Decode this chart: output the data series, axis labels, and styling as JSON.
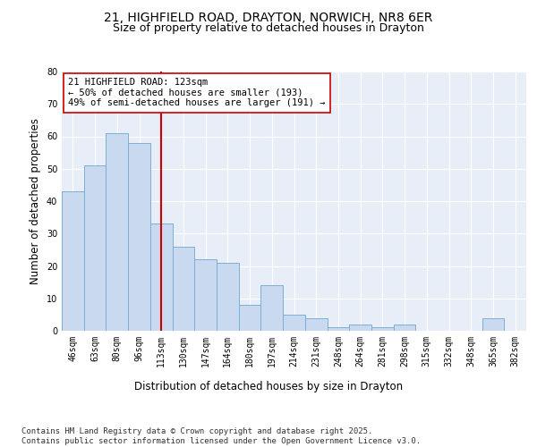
{
  "title_line1": "21, HIGHFIELD ROAD, DRAYTON, NORWICH, NR8 6ER",
  "title_line2": "Size of property relative to detached houses in Drayton",
  "xlabel": "Distribution of detached houses by size in Drayton",
  "ylabel": "Number of detached properties",
  "categories": [
    "46sqm",
    "63sqm",
    "80sqm",
    "96sqm",
    "113sqm",
    "130sqm",
    "147sqm",
    "164sqm",
    "180sqm",
    "197sqm",
    "214sqm",
    "231sqm",
    "248sqm",
    "264sqm",
    "281sqm",
    "298sqm",
    "315sqm",
    "332sqm",
    "348sqm",
    "365sqm",
    "382sqm"
  ],
  "values": [
    43,
    51,
    61,
    58,
    33,
    26,
    22,
    21,
    8,
    14,
    5,
    4,
    1,
    2,
    1,
    2,
    0,
    0,
    0,
    4,
    0
  ],
  "bar_color": "#c8d9f0",
  "bar_edge_color": "#7bafd4",
  "background_color": "#e8eef8",
  "grid_color": "#ffffff",
  "vline_x_idx": 4,
  "vline_color": "#cc0000",
  "annotation_text": "21 HIGHFIELD ROAD: 123sqm\n← 50% of detached houses are smaller (193)\n49% of semi-detached houses are larger (191) →",
  "annotation_box_color": "#ffffff",
  "annotation_box_edge": "#cc0000",
  "ylim": [
    0,
    80
  ],
  "yticks": [
    0,
    10,
    20,
    30,
    40,
    50,
    60,
    70,
    80
  ],
  "footer_text": "Contains HM Land Registry data © Crown copyright and database right 2025.\nContains public sector information licensed under the Open Government Licence v3.0.",
  "title_fontsize": 10,
  "subtitle_fontsize": 9,
  "axis_label_fontsize": 8.5,
  "tick_fontsize": 7,
  "annotation_fontsize": 7.5,
  "footer_fontsize": 6.5
}
